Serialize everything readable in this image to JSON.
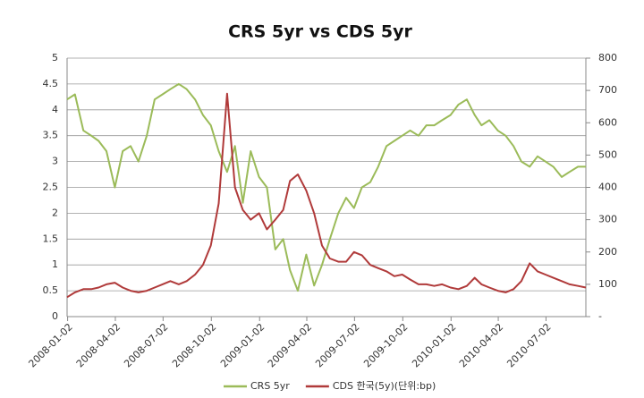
{
  "chart_data": {
    "type": "line",
    "title": "CRS 5yr vs CDS 5yr",
    "x": [
      "2008-01-01",
      "2008-01-16",
      "2008-02-01",
      "2008-02-16",
      "2008-03-01",
      "2008-03-16",
      "2008-04-01",
      "2008-04-16",
      "2008-05-01",
      "2008-05-16",
      "2008-06-01",
      "2008-06-16",
      "2008-07-01",
      "2008-07-16",
      "2008-08-01",
      "2008-08-16",
      "2008-09-01",
      "2008-09-16",
      "2008-10-01",
      "2008-10-16",
      "2008-11-01",
      "2008-11-16",
      "2008-12-01",
      "2008-12-16",
      "2009-01-01",
      "2009-01-16",
      "2009-02-01",
      "2009-02-16",
      "2009-03-01",
      "2009-03-16",
      "2009-04-01",
      "2009-04-16",
      "2009-05-01",
      "2009-05-16",
      "2009-06-01",
      "2009-06-16",
      "2009-07-01",
      "2009-07-16",
      "2009-08-01",
      "2009-08-16",
      "2009-09-01",
      "2009-09-16",
      "2009-10-01",
      "2009-10-16",
      "2009-11-01",
      "2009-11-16",
      "2009-12-01",
      "2009-12-16",
      "2010-01-01",
      "2010-01-16",
      "2010-02-01",
      "2010-02-16",
      "2010-03-01",
      "2010-03-16",
      "2010-04-01",
      "2010-04-16",
      "2010-05-01",
      "2010-05-16",
      "2010-06-01",
      "2010-06-16",
      "2010-07-01",
      "2010-07-16",
      "2010-08-01",
      "2010-08-16",
      "2010-09-01",
      "2010-09-16"
    ],
    "series": [
      {
        "name": "CRS 5yr",
        "color": "#9bbb59",
        "axis": "y",
        "values": [
          4.2,
          4.3,
          3.6,
          3.5,
          3.4,
          3.2,
          2.5,
          3.2,
          3.3,
          3.0,
          3.5,
          4.2,
          4.3,
          4.4,
          4.5,
          4.4,
          4.2,
          3.9,
          3.7,
          3.2,
          2.8,
          3.3,
          2.2,
          3.2,
          2.7,
          2.5,
          1.3,
          1.5,
          0.9,
          0.5,
          1.2,
          0.6,
          1.0,
          1.5,
          2.0,
          2.3,
          2.1,
          2.5,
          2.6,
          2.9,
          3.3,
          3.4,
          3.5,
          3.6,
          3.5,
          3.7,
          3.7,
          3.8,
          3.9,
          4.1,
          4.2,
          3.9,
          3.7,
          3.8,
          3.6,
          3.5,
          3.3,
          3.0,
          2.9,
          3.1,
          3.0,
          2.9,
          2.7,
          2.8,
          2.9,
          2.9
        ]
      },
      {
        "name": "CDS 한국(5y)(단위:bp)",
        "color": "#b03a3a",
        "axis": "y2",
        "values": [
          60,
          75,
          85,
          85,
          90,
          100,
          105,
          90,
          80,
          75,
          80,
          90,
          100,
          110,
          100,
          110,
          130,
          160,
          220,
          350,
          690,
          400,
          330,
          300,
          320,
          270,
          300,
          330,
          420,
          440,
          390,
          320,
          220,
          180,
          170,
          170,
          200,
          190,
          160,
          150,
          140,
          125,
          130,
          115,
          100,
          100,
          95,
          100,
          90,
          85,
          95,
          120,
          100,
          90,
          80,
          75,
          85,
          110,
          165,
          140,
          130,
          120,
          110,
          100,
          95,
          90
        ]
      }
    ],
    "xlim": [
      "2008-01-01",
      "2010-09-16"
    ],
    "xticks": [
      "2008-01-02",
      "2008-04-02",
      "2008-07-02",
      "2008-10-02",
      "2009-01-02",
      "2009-04-02",
      "2009-07-02",
      "2009-10-02",
      "2010-01-02",
      "2010-04-02",
      "2010-07-02"
    ],
    "ylim": [
      0,
      5
    ],
    "yticks": [
      0,
      0.5,
      1,
      1.5,
      2,
      2.5,
      3,
      3.5,
      4,
      4.5,
      5
    ],
    "y2lim": [
      0,
      800
    ],
    "y2ticks": [
      {
        "value": 0,
        "label": "-"
      },
      100,
      200,
      300,
      400,
      500,
      600,
      700,
      800
    ],
    "grid": true,
    "legend": "bottom"
  }
}
